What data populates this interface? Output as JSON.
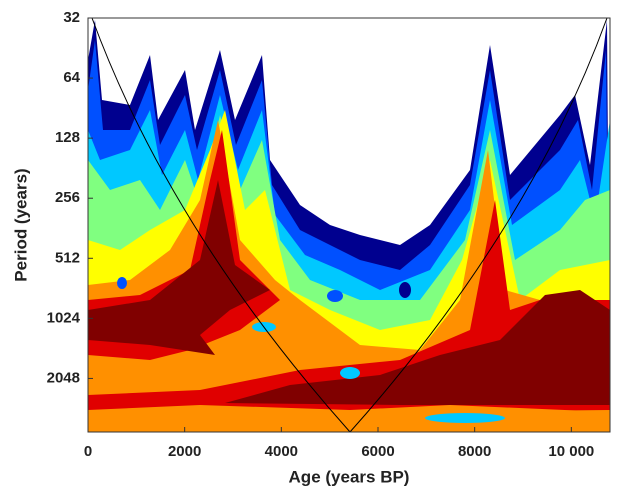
{
  "chart_data": {
    "type": "wavelet",
    "xlabel": "Age (years BP)",
    "ylabel": "Period (years)",
    "xlim": [
      0,
      10800
    ],
    "xticks": [
      0,
      2000,
      4000,
      6000,
      8000,
      {
        "value": 10000,
        "label": "10 000"
      }
    ],
    "ylim": [
      32,
      3800
    ],
    "yticks": [
      32,
      64,
      128,
      256,
      512,
      1024,
      2048
    ],
    "ylog": true,
    "yreversed": true
  }
}
